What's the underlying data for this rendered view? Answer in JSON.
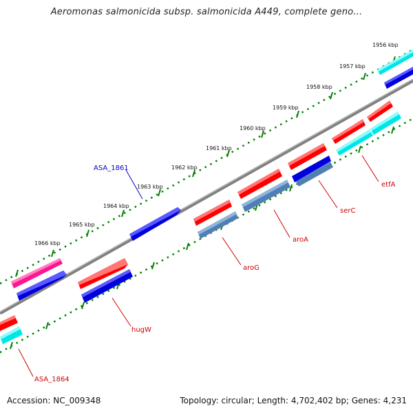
{
  "title": "Aeromonas salmonicida subsp. salmonicida A449, complete geno...",
  "footer": {
    "accession": "Accession: NC_009348",
    "topology": "Topology: circular; Length: 4,702,402 bp; Genes: 4,231"
  },
  "ticks": [
    "1956 kbp",
    "1957 kbp",
    "1958 kbp",
    "1959 kbp",
    "1960 kbp",
    "1961 kbp",
    "1962 kbp",
    "1963 kbp",
    "1964 kbp",
    "1965 kbp",
    "1966 kbp"
  ],
  "gene_labels": [
    {
      "name": "ASA_1861",
      "color": "#0000cc"
    },
    {
      "name": "etfA",
      "color": "#cc0000"
    },
    {
      "name": "serC",
      "color": "#cc0000"
    },
    {
      "name": "aroA",
      "color": "#cc0000"
    },
    {
      "name": "aroG",
      "color": "#cc0000"
    },
    {
      "name": "hugW",
      "color": "#cc0000"
    },
    {
      "name": "ASA_1864",
      "color": "#cc0000"
    }
  ],
  "colors": {
    "red": "#ff0000",
    "blue": "#0000dd",
    "cyan": "#00e6e6",
    "steel": "#4f7fb5",
    "magenta": "#ff1493",
    "backbone": "#808080",
    "dots": "#008000"
  }
}
